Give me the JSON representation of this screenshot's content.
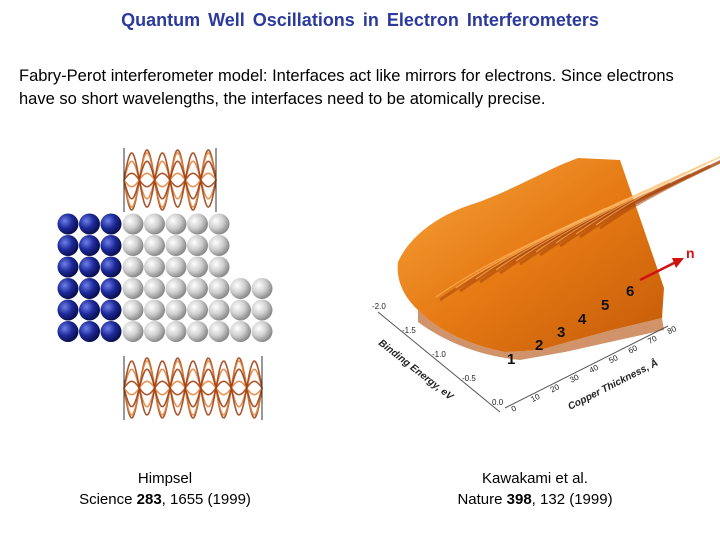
{
  "slide": {
    "title": "Quantum  Well  Oscillations  in  Electron  Interferometers",
    "intro": "Fabry-Perot interferometer model:  Interfaces act like mirrors for electrons.  Since electrons have so short wavelengths, the interfaces need to be atomically precise."
  },
  "left_figure": {
    "citation_author": "Himpsel",
    "citation_journal": "Science ",
    "citation_volume": "283",
    "citation_rest": ", 1655 (1999)"
  },
  "right_figure": {
    "peak_labels": [
      "1",
      "2",
      "3",
      "4",
      "5",
      "6"
    ],
    "n_label": "n",
    "binding_axis_title": "Binding Energy, eV",
    "binding_ticks": [
      "-2.0",
      "-1.5",
      "-1.0",
      "-0.5",
      "0.0"
    ],
    "thickness_axis_title": "Copper Thickness, Å",
    "thickness_ticks": [
      "0",
      "10",
      "20",
      "30",
      "40",
      "50",
      "60",
      "70",
      "80"
    ],
    "citation_author": "Kawakami et al.",
    "citation_journal": "Nature ",
    "citation_volume": "398",
    "citation_rest": ", 132 (1999)"
  },
  "colors": {
    "title": "#2b3a9e",
    "blue_atoms": "#1d2a9a",
    "gray_atoms": "#c8c8c8",
    "wave_orange": "#c7541a",
    "surface_orange": "#e67a14",
    "arrow_red": "#d11111"
  }
}
